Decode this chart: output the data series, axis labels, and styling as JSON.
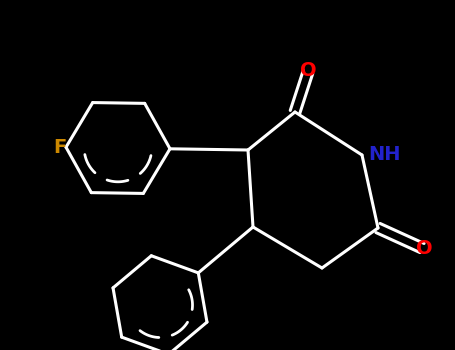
{
  "background_color": "#000000",
  "bond_color": "#ffffff",
  "atom_colors": {
    "F": "#cc8800",
    "O": "#ff0000",
    "N": "#2222cc",
    "C": "#888888"
  },
  "bond_width": 2.2,
  "font_size_atoms": 14,
  "figsize": [
    4.55,
    3.5
  ],
  "dpi": 100
}
